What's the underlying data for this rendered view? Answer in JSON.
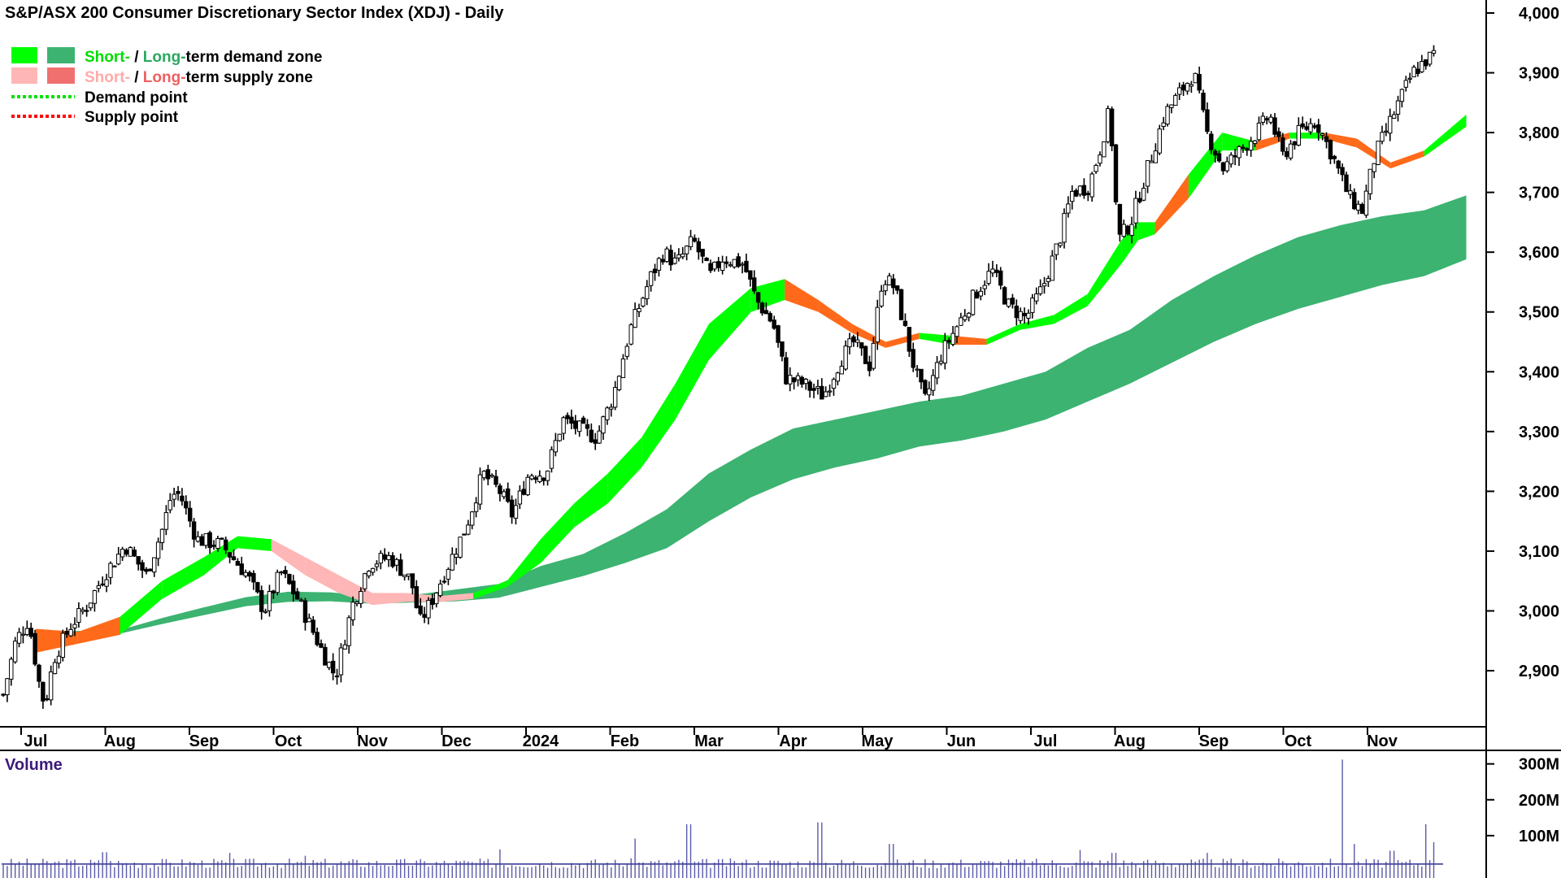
{
  "chart_data": {
    "type": "candlestick",
    "title": "S&P/ASX 200 Consumer Discretionary Sector Index (XDJ) - Daily",
    "legend": {
      "demand_zone": {
        "short": "Short-",
        "sep": " / ",
        "long": "Long-",
        "rest": "term demand zone"
      },
      "supply_zone": {
        "short": "Short-",
        "sep": " / ",
        "long": "Long-",
        "rest": "term supply zone"
      },
      "demand_point": "Demand point",
      "supply_point": "Supply point"
    },
    "months": [
      "Jul",
      "Aug",
      "Sep",
      "Oct",
      "Nov",
      "Dec",
      "2024",
      "Feb",
      "Mar",
      "Apr",
      "May",
      "Jun",
      "Jul",
      "Aug",
      "Sep",
      "Oct",
      "Nov"
    ],
    "month_pos": [
      0.0,
      1.0,
      2.0,
      3.0,
      4.0,
      5.0,
      6.0,
      7.0,
      8.0,
      9.0,
      10.0,
      11.0,
      12.0,
      13.0,
      14.0,
      15.0,
      16.0
    ],
    "y_ticks": [
      "4,000",
      "3,900",
      "3,800",
      "3,700",
      "3,600",
      "3,500",
      "3,400",
      "3,300",
      "3,200",
      "3,100",
      "3,000",
      "2,900"
    ],
    "y_tick_values": [
      4000,
      3900,
      3800,
      3700,
      3600,
      3500,
      3400,
      3300,
      3200,
      3100,
      3000,
      2900
    ],
    "ylim": [
      2780,
      4020
    ],
    "price_path": [
      [
        0.0,
        2860
      ],
      [
        0.15,
        2950
      ],
      [
        0.3,
        2985
      ],
      [
        0.45,
        2860
      ],
      [
        0.5,
        2845
      ],
      [
        0.6,
        2920
      ],
      [
        0.8,
        2975
      ],
      [
        1.0,
        3010
      ],
      [
        1.2,
        3060
      ],
      [
        1.45,
        3110
      ],
      [
        1.7,
        3060
      ],
      [
        1.9,
        3140
      ],
      [
        2.0,
        3195
      ],
      [
        2.1,
        3195
      ],
      [
        2.3,
        3120
      ],
      [
        2.6,
        3110
      ],
      [
        2.9,
        3060
      ],
      [
        3.1,
        3000
      ],
      [
        3.3,
        3065
      ],
      [
        3.5,
        3020
      ],
      [
        3.8,
        2930
      ],
      [
        3.95,
        2890
      ],
      [
        4.15,
        3010
      ],
      [
        4.35,
        3080
      ],
      [
        4.6,
        3090
      ],
      [
        4.85,
        3050
      ],
      [
        4.95,
        2980
      ],
      [
        5.1,
        3020
      ],
      [
        5.3,
        3080
      ],
      [
        5.5,
        3140
      ],
      [
        5.7,
        3230
      ],
      [
        5.9,
        3200
      ],
      [
        6.05,
        3160
      ],
      [
        6.25,
        3230
      ],
      [
        6.45,
        3230
      ],
      [
        6.65,
        3320
      ],
      [
        6.9,
        3300
      ],
      [
        7.05,
        3290
      ],
      [
        7.25,
        3360
      ],
      [
        7.45,
        3470
      ],
      [
        7.7,
        3560
      ],
      [
        7.85,
        3600
      ],
      [
        8.0,
        3580
      ],
      [
        8.2,
        3620
      ],
      [
        8.4,
        3560
      ],
      [
        8.55,
        3590
      ],
      [
        8.8,
        3580
      ],
      [
        8.95,
        3520
      ],
      [
        9.15,
        3480
      ],
      [
        9.3,
        3390
      ],
      [
        9.5,
        3380
      ],
      [
        9.75,
        3360
      ],
      [
        9.95,
        3420
      ],
      [
        10.1,
        3450
      ],
      [
        10.3,
        3410
      ],
      [
        10.45,
        3560
      ],
      [
        10.6,
        3540
      ],
      [
        10.8,
        3420
      ],
      [
        10.95,
        3350
      ],
      [
        11.15,
        3430
      ],
      [
        11.35,
        3480
      ],
      [
        11.55,
        3530
      ],
      [
        11.75,
        3570
      ],
      [
        11.95,
        3510
      ],
      [
        12.15,
        3490
      ],
      [
        12.35,
        3540
      ],
      [
        12.55,
        3620
      ],
      [
        12.7,
        3700
      ],
      [
        12.9,
        3710
      ],
      [
        13.05,
        3780
      ],
      [
        13.15,
        3840
      ],
      [
        13.25,
        3620
      ],
      [
        13.4,
        3650
      ],
      [
        13.6,
        3740
      ],
      [
        13.8,
        3830
      ],
      [
        14.0,
        3870
      ],
      [
        14.15,
        3900
      ],
      [
        14.3,
        3800
      ],
      [
        14.5,
        3740
      ],
      [
        14.7,
        3770
      ],
      [
        14.9,
        3800
      ],
      [
        15.05,
        3830
      ],
      [
        15.2,
        3760
      ],
      [
        15.4,
        3800
      ],
      [
        15.6,
        3820
      ],
      [
        15.8,
        3760
      ],
      [
        16.0,
        3690
      ],
      [
        16.15,
        3670
      ],
      [
        16.3,
        3760
      ],
      [
        16.55,
        3840
      ],
      [
        16.75,
        3900
      ],
      [
        16.9,
        3920
      ],
      [
        17.0,
        3930
      ]
    ],
    "long_zone": [
      [
        0.0,
        2965,
        2963
      ],
      [
        1.0,
        2968,
        2962
      ],
      [
        1.5,
        2988,
        2978
      ],
      [
        2.0,
        3006,
        2993
      ],
      [
        2.5,
        3023,
        3008
      ],
      [
        3.0,
        3032,
        3015
      ],
      [
        3.5,
        3031,
        3016
      ],
      [
        4.0,
        3025,
        3012
      ],
      [
        4.5,
        3027,
        3014
      ],
      [
        5.0,
        3036,
        3016
      ],
      [
        5.5,
        3045,
        3022
      ],
      [
        6.0,
        3075,
        3040
      ],
      [
        6.5,
        3095,
        3058
      ],
      [
        7.0,
        3130,
        3080
      ],
      [
        7.5,
        3170,
        3105
      ],
      [
        8.0,
        3230,
        3150
      ],
      [
        8.5,
        3270,
        3190
      ],
      [
        9.0,
        3305,
        3220
      ],
      [
        9.5,
        3320,
        3240
      ],
      [
        10.0,
        3335,
        3255
      ],
      [
        10.5,
        3350,
        3275
      ],
      [
        11.0,
        3360,
        3285
      ],
      [
        11.5,
        3380,
        3300
      ],
      [
        12.0,
        3400,
        3320
      ],
      [
        12.5,
        3440,
        3350
      ],
      [
        13.0,
        3470,
        3380
      ],
      [
        13.5,
        3520,
        3415
      ],
      [
        14.0,
        3560,
        3450
      ],
      [
        14.5,
        3595,
        3480
      ],
      [
        15.0,
        3625,
        3505
      ],
      [
        15.5,
        3645,
        3525
      ],
      [
        16.0,
        3660,
        3545
      ],
      [
        16.5,
        3670,
        3560
      ],
      [
        17.0,
        3695,
        3588
      ]
    ],
    "short_zone": [
      [
        0.0,
        2970,
        2930,
        "supply"
      ],
      [
        0.5,
        2965,
        2945,
        "supply"
      ],
      [
        1.0,
        2990,
        2960,
        "demand"
      ],
      [
        1.5,
        3050,
        3020,
        "demand"
      ],
      [
        2.0,
        3090,
        3060,
        "demand"
      ],
      [
        2.4,
        3125,
        3105,
        "demand"
      ],
      [
        2.8,
        3120,
        3100,
        "supply"
      ],
      [
        3.2,
        3090,
        3060,
        "supply"
      ],
      [
        3.6,
        3060,
        3030,
        "supply"
      ],
      [
        4.0,
        3030,
        3010,
        "supply"
      ],
      [
        4.4,
        3030,
        3015,
        "supply"
      ],
      [
        4.8,
        3025,
        3015,
        "supply"
      ],
      [
        5.2,
        3030,
        3020,
        "demand"
      ],
      [
        5.6,
        3050,
        3040,
        "demand"
      ],
      [
        6.0,
        3120,
        3080,
        "demand"
      ],
      [
        6.4,
        3180,
        3140,
        "demand"
      ],
      [
        6.8,
        3230,
        3180,
        "demand"
      ],
      [
        7.2,
        3290,
        3240,
        "demand"
      ],
      [
        7.6,
        3380,
        3320,
        "demand"
      ],
      [
        8.0,
        3480,
        3420,
        "demand"
      ],
      [
        8.5,
        3540,
        3500,
        "demand"
      ],
      [
        8.9,
        3555,
        3520,
        "supply"
      ],
      [
        9.3,
        3520,
        3500,
        "supply"
      ],
      [
        9.7,
        3480,
        3465,
        "supply"
      ],
      [
        10.1,
        3450,
        3440,
        "supply"
      ],
      [
        10.5,
        3465,
        3455,
        "demand"
      ],
      [
        10.9,
        3460,
        3445,
        "supply"
      ],
      [
        11.3,
        3455,
        3445,
        "demand"
      ],
      [
        11.7,
        3480,
        3470,
        "demand"
      ],
      [
        12.1,
        3495,
        3480,
        "demand"
      ],
      [
        12.5,
        3530,
        3510,
        "demand"
      ],
      [
        12.9,
        3620,
        3580,
        "demand"
      ],
      [
        13.1,
        3650,
        3620,
        "demand"
      ],
      [
        13.3,
        3650,
        3630,
        "supply"
      ],
      [
        13.7,
        3730,
        3690,
        "demand"
      ],
      [
        14.1,
        3800,
        3770,
        "demand"
      ],
      [
        14.5,
        3785,
        3770,
        "supply"
      ],
      [
        14.9,
        3800,
        3790,
        "demand"
      ],
      [
        15.3,
        3800,
        3790,
        "supply"
      ],
      [
        15.7,
        3790,
        3775,
        "supply"
      ],
      [
        16.1,
        3750,
        3740,
        "supply"
      ],
      [
        16.5,
        3770,
        3760,
        "demand"
      ],
      [
        17.0,
        3830,
        3810,
        "demand"
      ]
    ],
    "volume": {
      "label": "Volume",
      "y_ticks": [
        "300M",
        "200M",
        "100M"
      ],
      "y_tick_values": [
        300,
        200,
        100
      ],
      "ylim": [
        0,
        340
      ],
      "baseline": 50,
      "spikes": [
        [
          1.2,
          72
        ],
        [
          2.7,
          70
        ],
        [
          3.6,
          62
        ],
        [
          5.9,
          80
        ],
        [
          7.5,
          110
        ],
        [
          8.15,
          150
        ],
        [
          9.7,
          155
        ],
        [
          10.55,
          95
        ],
        [
          12.8,
          78
        ],
        [
          13.2,
          70
        ],
        [
          14.3,
          70
        ],
        [
          15.9,
          330
        ],
        [
          16.05,
          95
        ],
        [
          16.5,
          76
        ],
        [
          16.9,
          150
        ],
        [
          17.0,
          100
        ]
      ]
    },
    "colors": {
      "short_demand": "#00ff00",
      "long_demand": "#3cb371",
      "short_supply": "#ffb6b6",
      "long_supply": "#f07070",
      "short_supply_dark": "#ff6a1a",
      "demand_point": "#00e000",
      "supply_point": "#ff0000",
      "candle": "#000000",
      "volume_bar": "#5a5aa8",
      "volume_line": "#3c3c9a"
    }
  }
}
